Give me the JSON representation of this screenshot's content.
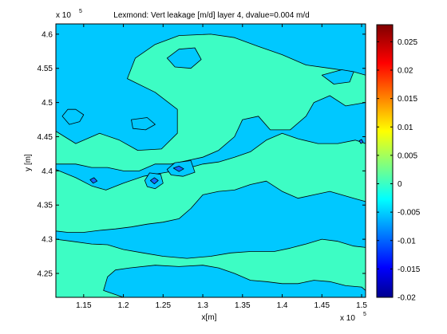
{
  "chart_data": {
    "type": "contour",
    "title": "Lexmond: Vert leakage [m/d] layer 4, dvalue=0.004 m/d",
    "xlabel": "x[m]",
    "ylabel": "y [m]",
    "x_exponent": "x 10",
    "y_exponent": "x 10",
    "exponent_power": "5",
    "xlim": [
      1.115,
      1.505
    ],
    "ylim": [
      4.215,
      4.615
    ],
    "x_ticks": [
      1.15,
      1.2,
      1.25,
      1.3,
      1.35,
      1.4,
      1.45,
      1.5
    ],
    "x_tick_labels": [
      "1.15",
      "1.2",
      "1.25",
      "1.3",
      "1.35",
      "1.4",
      "1.45",
      "1.5"
    ],
    "y_ticks": [
      4.25,
      4.3,
      4.35,
      4.4,
      4.45,
      4.5,
      4.55,
      4.6
    ],
    "y_tick_labels": [
      "4.25",
      "4.3",
      "4.35",
      "4.4",
      "4.45",
      "4.5",
      "4.55",
      "4.6"
    ],
    "colorbar": {
      "range": [
        -0.02,
        0.028
      ],
      "ticks": [
        -0.02,
        -0.015,
        -0.01,
        -0.005,
        0,
        0.005,
        0.01,
        0.015,
        0.02,
        0.025
      ],
      "tick_labels": [
        "-0.02",
        "-0.015",
        "-0.01",
        "-0.005",
        "0",
        "0.005",
        "0.01",
        "0.015",
        "0.02",
        "0.025"
      ],
      "colormap": "jet"
    },
    "contour_interval": 0.004,
    "colors": {
      "level_0": "#3dfdc4",
      "level_neg": "#00c8ff",
      "level_min": "#1468ff",
      "contour_line": "#000000"
    },
    "regions": [
      {
        "level": "level_0",
        "points": [
          [
            1.115,
            4.458
          ],
          [
            1.14,
            4.44
          ],
          [
            1.17,
            4.455
          ],
          [
            1.195,
            4.445
          ],
          [
            1.218,
            4.43
          ],
          [
            1.248,
            4.432
          ],
          [
            1.268,
            4.455
          ],
          [
            1.268,
            4.49
          ],
          [
            1.24,
            4.515
          ],
          [
            1.205,
            4.535
          ],
          [
            1.215,
            4.565
          ],
          [
            1.24,
            4.585
          ],
          [
            1.27,
            4.598
          ],
          [
            1.31,
            4.6
          ],
          [
            1.34,
            4.595
          ],
          [
            1.37,
            4.582
          ],
          [
            1.4,
            4.57
          ],
          [
            1.43,
            4.555
          ],
          [
            1.46,
            4.55
          ],
          [
            1.49,
            4.545
          ],
          [
            1.505,
            4.54
          ],
          [
            1.505,
            4.5
          ],
          [
            1.48,
            4.495
          ],
          [
            1.46,
            4.51
          ],
          [
            1.44,
            4.5
          ],
          [
            1.43,
            4.48
          ],
          [
            1.41,
            4.46
          ],
          [
            1.385,
            4.46
          ],
          [
            1.37,
            4.48
          ],
          [
            1.35,
            4.475
          ],
          [
            1.34,
            4.45
          ],
          [
            1.32,
            4.43
          ],
          [
            1.3,
            4.42
          ],
          [
            1.28,
            4.415
          ],
          [
            1.26,
            4.41
          ],
          [
            1.24,
            4.41
          ],
          [
            1.22,
            4.4
          ],
          [
            1.2,
            4.4
          ],
          [
            1.18,
            4.405
          ],
          [
            1.16,
            4.405
          ],
          [
            1.14,
            4.41
          ],
          [
            1.115,
            4.41
          ]
        ]
      },
      {
        "level": "level_0",
        "points": [
          [
            1.115,
            4.402
          ],
          [
            1.14,
            4.39
          ],
          [
            1.16,
            4.378
          ],
          [
            1.178,
            4.372
          ],
          [
            1.2,
            4.382
          ],
          [
            1.225,
            4.392
          ],
          [
            1.25,
            4.397
          ],
          [
            1.275,
            4.402
          ],
          [
            1.3,
            4.41
          ],
          [
            1.32,
            4.413
          ],
          [
            1.34,
            4.42
          ],
          [
            1.36,
            4.428
          ],
          [
            1.38,
            4.445
          ],
          [
            1.4,
            4.455
          ],
          [
            1.42,
            4.447
          ],
          [
            1.445,
            4.44
          ],
          [
            1.47,
            4.44
          ],
          [
            1.492,
            4.445
          ],
          [
            1.505,
            4.44
          ],
          [
            1.505,
            4.355
          ],
          [
            1.49,
            4.36
          ],
          [
            1.46,
            4.37
          ],
          [
            1.44,
            4.365
          ],
          [
            1.42,
            4.36
          ],
          [
            1.4,
            4.37
          ],
          [
            1.38,
            4.385
          ],
          [
            1.36,
            4.38
          ],
          [
            1.34,
            4.372
          ],
          [
            1.32,
            4.37
          ],
          [
            1.3,
            4.365
          ],
          [
            1.285,
            4.345
          ],
          [
            1.27,
            4.33
          ],
          [
            1.25,
            4.325
          ],
          [
            1.23,
            4.322
          ],
          [
            1.21,
            4.318
          ],
          [
            1.19,
            4.315
          ],
          [
            1.17,
            4.313
          ],
          [
            1.15,
            4.31
          ],
          [
            1.13,
            4.31
          ],
          [
            1.115,
            4.312
          ]
        ]
      },
      {
        "level": "level_0",
        "points": [
          [
            1.115,
            4.3
          ],
          [
            1.135,
            4.297
          ],
          [
            1.16,
            4.293
          ],
          [
            1.18,
            4.292
          ],
          [
            1.2,
            4.285
          ],
          [
            1.225,
            4.28
          ],
          [
            1.25,
            4.275
          ],
          [
            1.28,
            4.272
          ],
          [
            1.31,
            4.275
          ],
          [
            1.335,
            4.28
          ],
          [
            1.36,
            4.282
          ],
          [
            1.39,
            4.282
          ],
          [
            1.41,
            4.287
          ],
          [
            1.43,
            4.293
          ],
          [
            1.45,
            4.3
          ],
          [
            1.47,
            4.297
          ],
          [
            1.49,
            4.29
          ],
          [
            1.505,
            4.288
          ],
          [
            1.505,
            4.215
          ],
          [
            1.115,
            4.215
          ]
        ]
      },
      {
        "level": "level_neg",
        "points": [
          [
            1.208,
            4.258
          ],
          [
            1.24,
            4.262
          ],
          [
            1.27,
            4.26
          ],
          [
            1.3,
            4.262
          ],
          [
            1.32,
            4.258
          ],
          [
            1.34,
            4.25
          ],
          [
            1.36,
            4.24
          ],
          [
            1.38,
            4.238
          ],
          [
            1.4,
            4.235
          ],
          [
            1.42,
            4.235
          ],
          [
            1.44,
            4.24
          ],
          [
            1.46,
            4.238
          ],
          [
            1.48,
            4.232
          ],
          [
            1.5,
            4.23
          ],
          [
            1.505,
            4.225
          ],
          [
            1.505,
            4.215
          ],
          [
            1.2,
            4.215
          ],
          [
            1.175,
            4.225
          ],
          [
            1.18,
            4.245
          ],
          [
            1.19,
            4.255
          ]
        ]
      },
      {
        "level": "level_neg",
        "points": [
          [
            1.123,
            4.48
          ],
          [
            1.13,
            4.49
          ],
          [
            1.14,
            4.49
          ],
          [
            1.15,
            4.482
          ],
          [
            1.145,
            4.472
          ],
          [
            1.132,
            4.468
          ]
        ]
      },
      {
        "level": "level_neg",
        "points": [
          [
            1.21,
            4.475
          ],
          [
            1.23,
            4.478
          ],
          [
            1.24,
            4.468
          ],
          [
            1.228,
            4.46
          ],
          [
            1.212,
            4.462
          ]
        ]
      },
      {
        "level": "level_neg",
        "points": [
          [
            1.255,
            4.402
          ],
          [
            1.265,
            4.412
          ],
          [
            1.285,
            4.415
          ],
          [
            1.29,
            4.398
          ],
          [
            1.275,
            4.392
          ],
          [
            1.26,
            4.394
          ]
        ]
      },
      {
        "level": "level_neg",
        "points": [
          [
            1.227,
            4.386
          ],
          [
            1.233,
            4.397
          ],
          [
            1.247,
            4.395
          ],
          [
            1.25,
            4.382
          ],
          [
            1.24,
            4.374
          ],
          [
            1.23,
            4.377
          ]
        ]
      },
      {
        "level": "level_neg",
        "points": [
          [
            1.45,
            4.54
          ],
          [
            1.475,
            4.548
          ],
          [
            1.49,
            4.545
          ],
          [
            1.485,
            4.53
          ],
          [
            1.465,
            4.527
          ]
        ]
      },
      {
        "level": "level_neg",
        "points": [
          [
            1.255,
            4.565
          ],
          [
            1.27,
            4.578
          ],
          [
            1.29,
            4.58
          ],
          [
            1.298,
            4.563
          ],
          [
            1.285,
            4.55
          ],
          [
            1.265,
            4.552
          ]
        ]
      },
      {
        "level": "level_min",
        "points": [
          [
            1.263,
            4.404
          ],
          [
            1.27,
            4.407
          ],
          [
            1.276,
            4.403
          ],
          [
            1.27,
            4.399
          ]
        ]
      },
      {
        "level": "level_min",
        "points": [
          [
            1.234,
            4.386
          ],
          [
            1.239,
            4.39
          ],
          [
            1.244,
            4.386
          ],
          [
            1.239,
            4.381
          ]
        ]
      },
      {
        "level": "level_min",
        "points": [
          [
            1.158,
            4.387
          ],
          [
            1.163,
            4.39
          ],
          [
            1.167,
            4.385
          ],
          [
            1.162,
            4.382
          ]
        ]
      },
      {
        "level": "level_min",
        "points": [
          [
            1.497,
            4.444
          ],
          [
            1.5,
            4.446
          ],
          [
            1.502,
            4.442
          ],
          [
            1.499,
            4.44
          ]
        ]
      }
    ]
  }
}
